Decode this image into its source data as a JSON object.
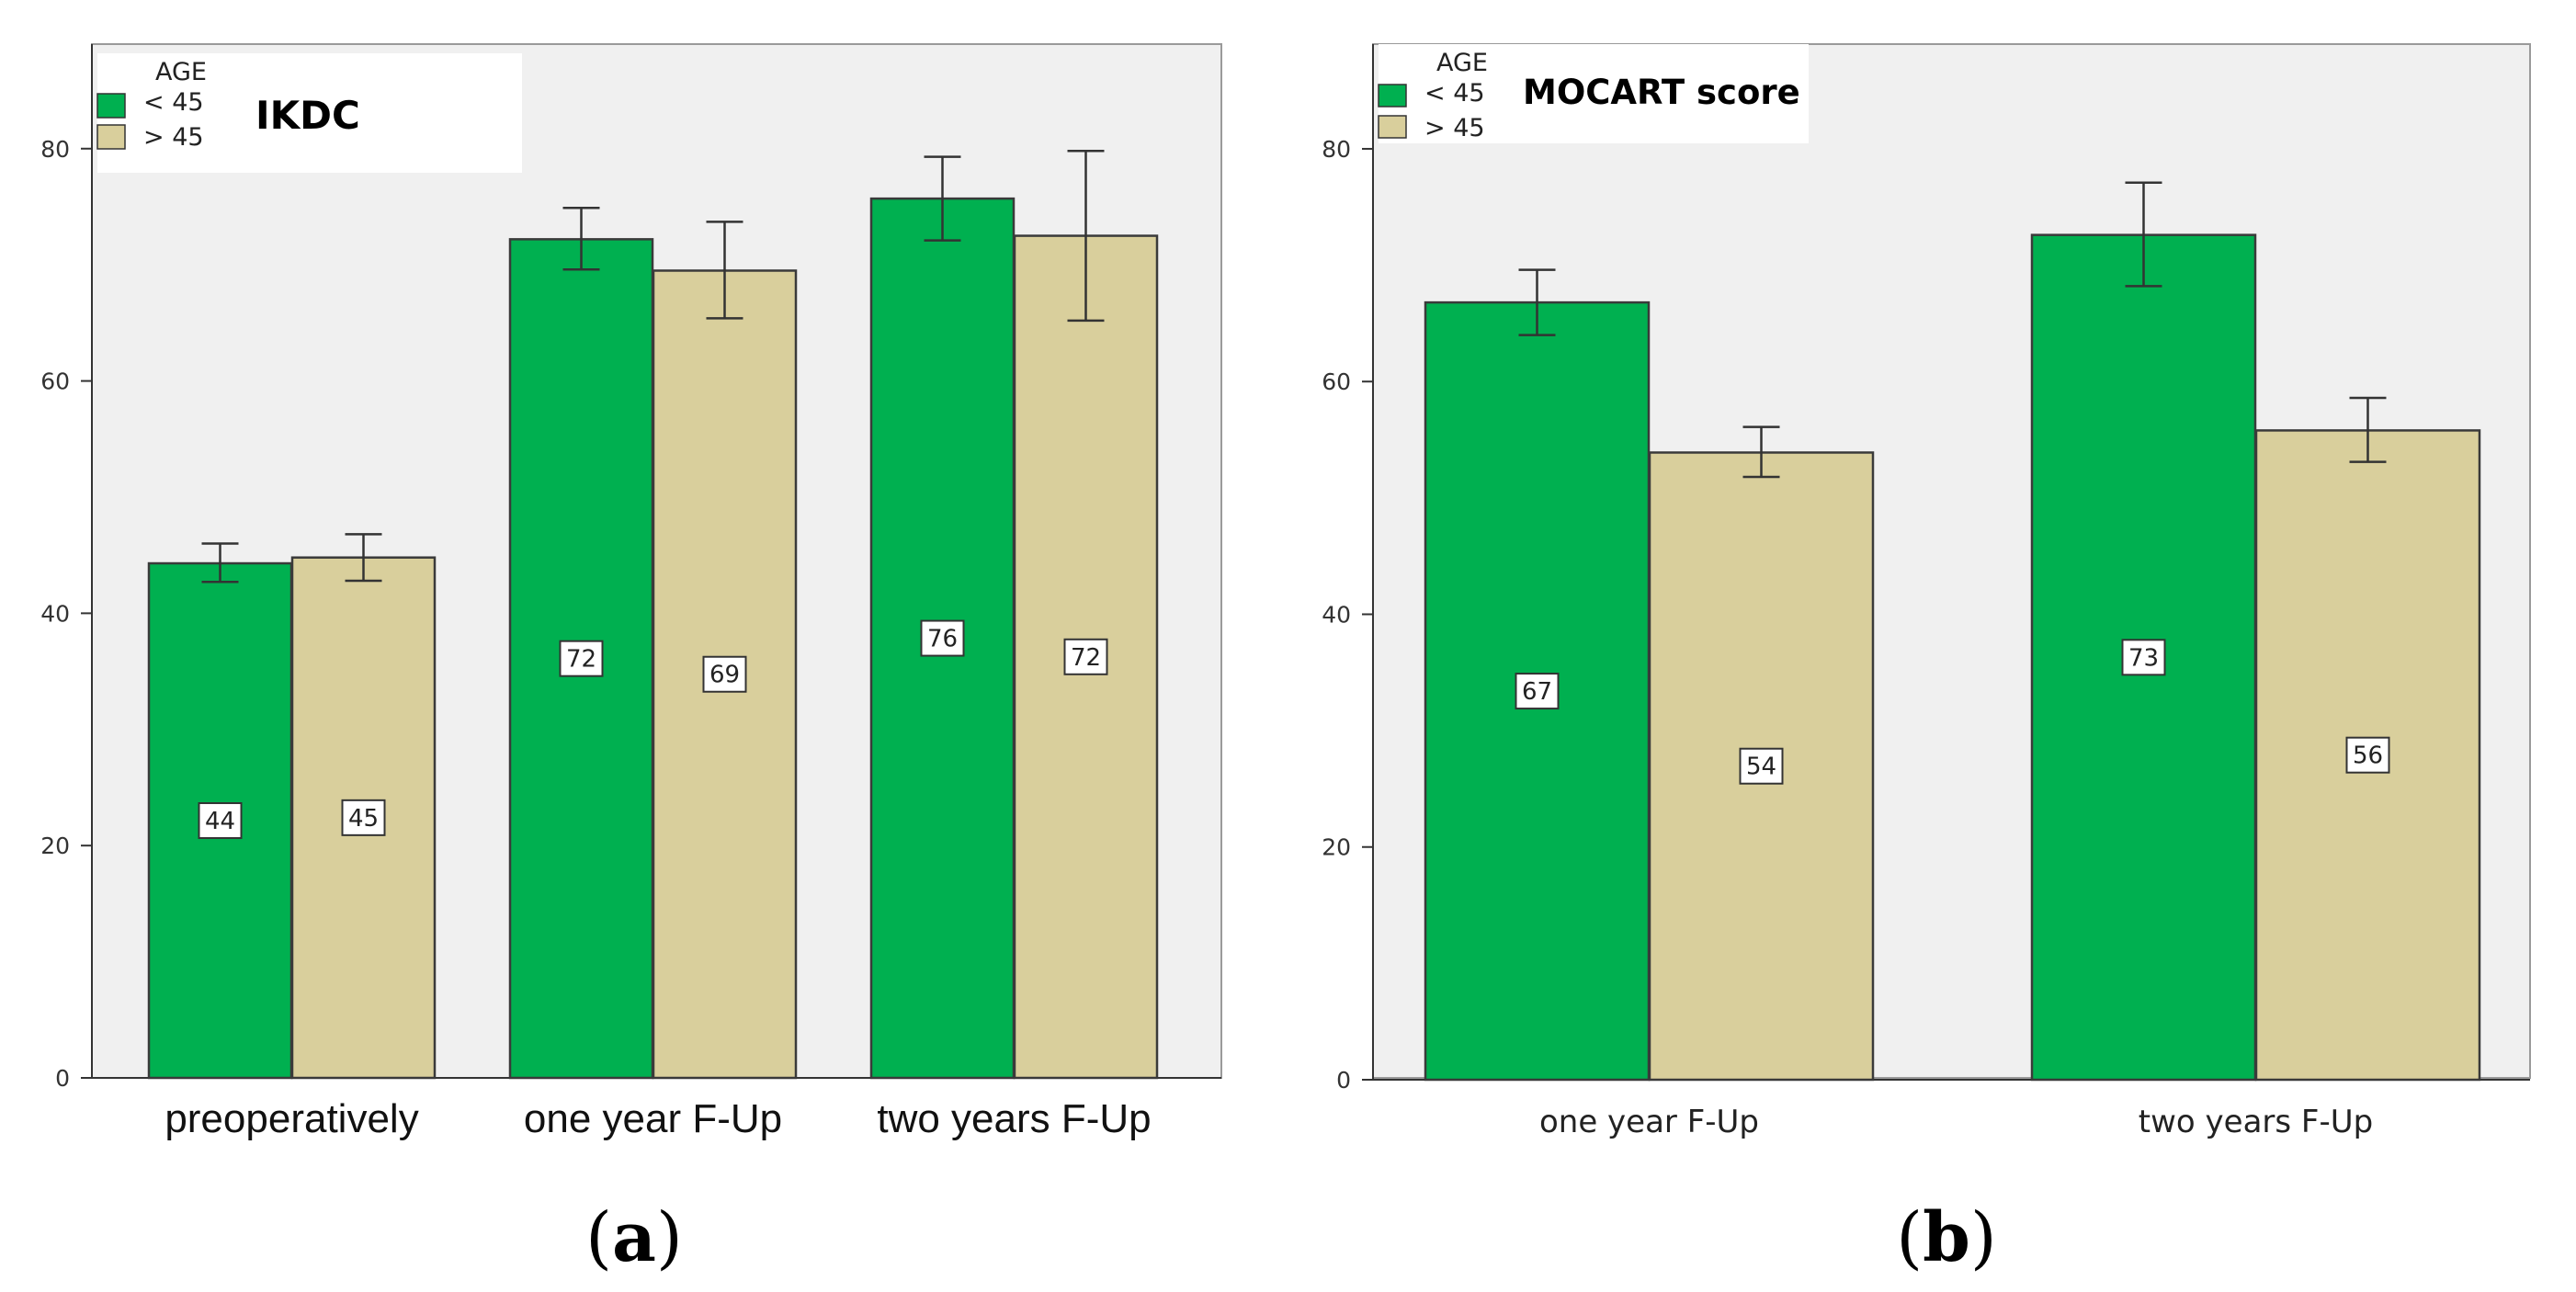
{
  "colors": {
    "under45": "#00b050",
    "over45": "#d9cf9c",
    "plot_bg": "#f0f0f0",
    "axis": "#333333"
  },
  "legend_title": "AGE",
  "legend_labels": [
    "< 45",
    "> 45"
  ],
  "chart_data": [
    {
      "type": "bar",
      "title": "IKDC",
      "panel_label": "a",
      "categories": [
        "preoperatively",
        "one year F-Up",
        "two years F-Up"
      ],
      "series": [
        {
          "name": "< 45",
          "values": [
            44.3,
            72.2,
            75.7
          ],
          "labels": [
            "44",
            "72",
            "76"
          ],
          "err_low": [
            42.7,
            69.6,
            72.1
          ],
          "err_high": [
            46.0,
            74.9,
            79.3
          ]
        },
        {
          "name": "> 45",
          "values": [
            44.8,
            69.5,
            72.5
          ],
          "labels": [
            "45",
            "69",
            "72"
          ],
          "err_low": [
            42.8,
            65.4,
            65.2
          ],
          "err_high": [
            46.8,
            73.7,
            79.8
          ]
        }
      ],
      "yticks": [
        0,
        20,
        40,
        60,
        80
      ],
      "ylim": [
        0,
        89
      ]
    },
    {
      "type": "bar",
      "title": "MOCART score",
      "panel_label": "b",
      "categories": [
        "one year F-Up",
        "two years F-Up"
      ],
      "series": [
        {
          "name": "< 45",
          "values": [
            66.8,
            72.6
          ],
          "labels": [
            "67",
            "73"
          ],
          "err_low": [
            64.0,
            68.2
          ],
          "err_high": [
            69.6,
            77.1
          ]
        },
        {
          "name": "> 45",
          "values": [
            53.9,
            55.8
          ],
          "labels": [
            "54",
            "56"
          ],
          "err_low": [
            51.8,
            53.1
          ],
          "err_high": [
            56.1,
            58.6
          ]
        }
      ],
      "yticks": [
        0,
        20,
        40,
        60,
        80
      ],
      "ylim": [
        0,
        89
      ]
    }
  ]
}
